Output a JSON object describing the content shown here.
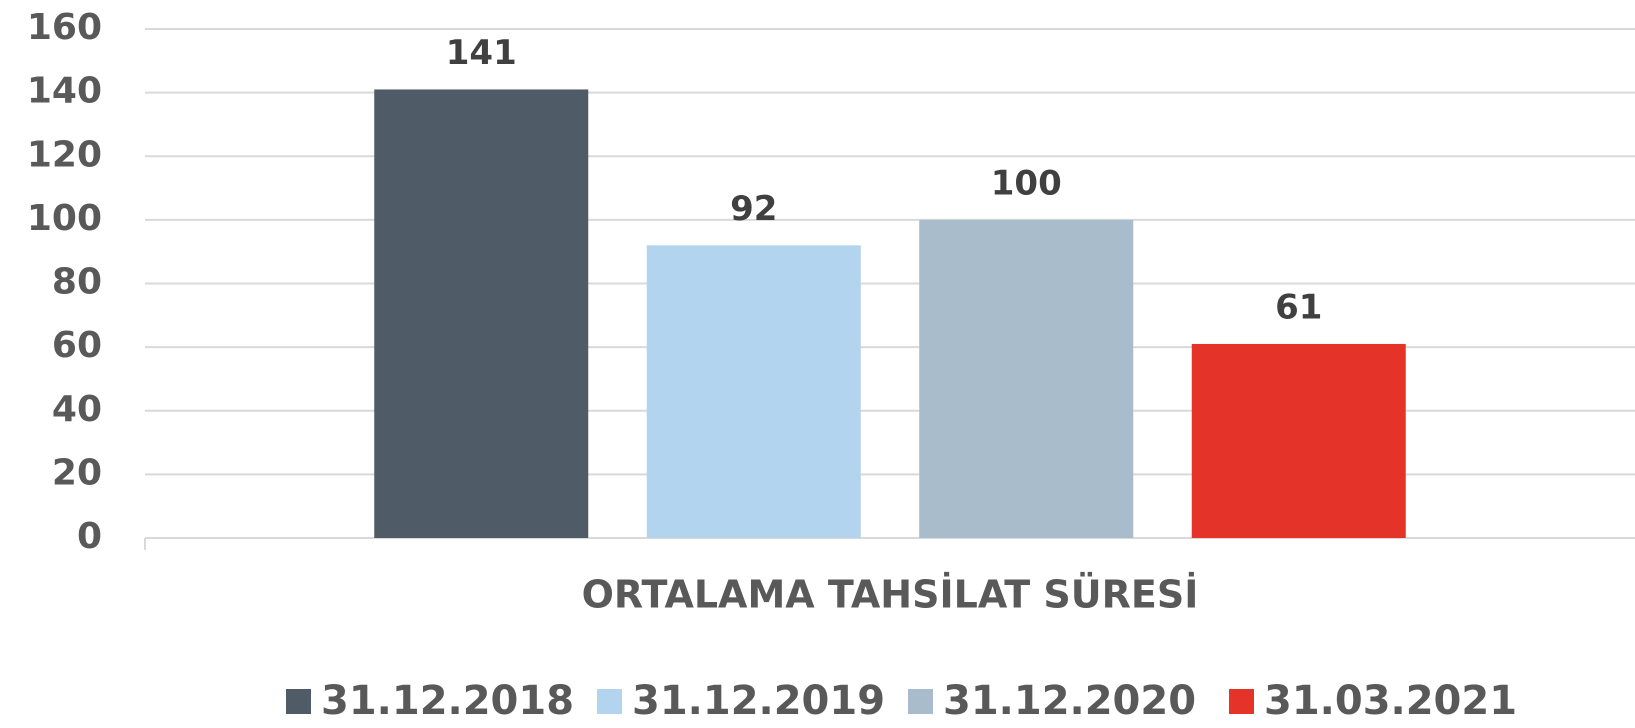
{
  "chart_data": {
    "type": "bar",
    "categories": [
      "ORTALAMA TAHSİLAT SÜRESİ"
    ],
    "series": [
      {
        "name": "31.12.2018",
        "color": "#4f5b66",
        "values": [
          141
        ]
      },
      {
        "name": "31.12.2019",
        "color": "#b2d4ef",
        "values": [
          92
        ]
      },
      {
        "name": "31.12.2020",
        "color": "#a9bccb",
        "values": [
          100
        ]
      },
      {
        "name": "31.03.2021",
        "color": "#e4342a",
        "values": [
          61
        ]
      }
    ],
    "ylim": [
      0,
      160
    ],
    "yticks": [
      0,
      20,
      40,
      60,
      80,
      100,
      120,
      140,
      160
    ],
    "grid": true,
    "legend": "bottom"
  }
}
